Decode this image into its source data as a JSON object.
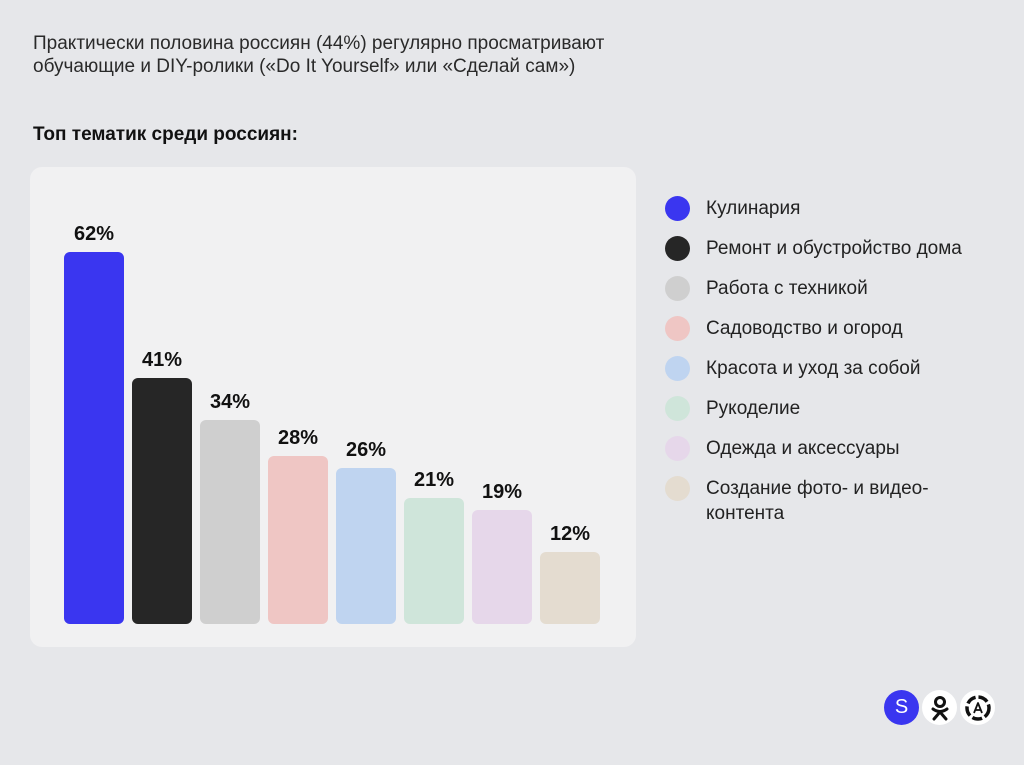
{
  "header": {
    "headline_line1": "Практически половина россиян (44%) регулярно просматривают",
    "headline_line2": "обучающие и DIY-ролики («Do It Yourself» или «Сделай сам»)",
    "subheading": "Топ тематик среди россиян:"
  },
  "chart_data": {
    "type": "bar",
    "categories": [
      "Кулинария",
      "Ремонт и обустройство дома",
      "Работа с техникой",
      "Садоводство и огород",
      "Красота и уход за собой",
      "Рукоделие",
      "Одежда и аксессуары",
      "Создание фото- и видео-контента"
    ],
    "values": [
      62,
      41,
      34,
      28,
      26,
      21,
      19,
      12
    ],
    "value_labels": [
      "62%",
      "41%",
      "34%",
      "28%",
      "26%",
      "21%",
      "19%",
      "12%"
    ],
    "colors": [
      "#3a36f0",
      "#262626",
      "#cfcfcf",
      "#efc6c4",
      "#bfd4f0",
      "#cfe5da",
      "#e6d7ea",
      "#e4dcd0"
    ],
    "legend_position": "right",
    "grid": false
  },
  "legend": {
    "items": [
      {
        "label_lines": [
          "Кулинария"
        ],
        "color": "#3a36f0"
      },
      {
        "label_lines": [
          "Ремонт и обустройство дома"
        ],
        "color": "#262626"
      },
      {
        "label_lines": [
          "Работа с техникой"
        ],
        "color": "#cfcfcf"
      },
      {
        "label_lines": [
          "Садоводство и огород"
        ],
        "color": "#efc6c4"
      },
      {
        "label_lines": [
          "Красота и уход за собой"
        ],
        "color": "#bfd4f0"
      },
      {
        "label_lines": [
          "Рукоделие"
        ],
        "color": "#cfe5da"
      },
      {
        "label_lines": [
          "Одежда и аксессуары"
        ],
        "color": "#e6d7ea"
      },
      {
        "label_lines": [
          "Создание фото- и видео-",
          "контента"
        ],
        "color": "#e4dcd0"
      }
    ]
  },
  "logos": {
    "s_letter": "S",
    "icons": [
      "sber-logo-icon",
      "odnoklassniki-logo-icon",
      "aura-logo-icon"
    ]
  }
}
